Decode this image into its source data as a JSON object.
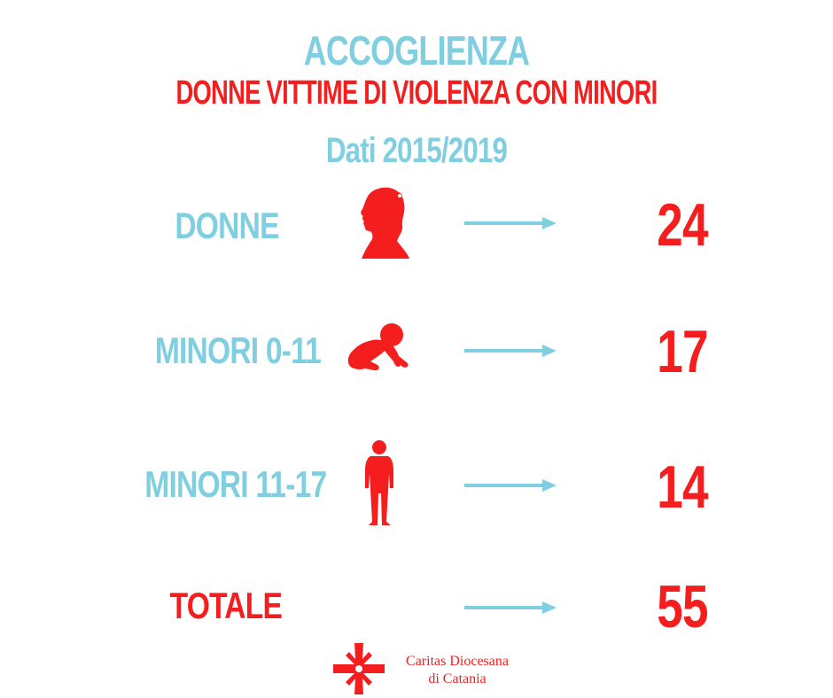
{
  "colors": {
    "blue": "#7fcfe0",
    "red": "#f41e1e"
  },
  "header": {
    "title": "ACCOGLIENZA",
    "subtitle": "DONNE VITTIME DI VIOLENZA CON MINORI",
    "period": "Dati 2015/2019"
  },
  "rows": [
    {
      "label": "DONNE",
      "value": "24",
      "icon": "woman-profile-icon"
    },
    {
      "label": "MINORI 0-11",
      "value": "17",
      "icon": "crawling-baby-icon"
    },
    {
      "label": "MINORI 11-17",
      "value": "14",
      "icon": "teen-standing-icon"
    },
    {
      "label": "TOTALE",
      "value": "55"
    }
  ],
  "footer": {
    "org_line1": "Caritas Diocesana",
    "org_line2": "di Catania",
    "logo_icon": "caritas-cross-icon"
  }
}
